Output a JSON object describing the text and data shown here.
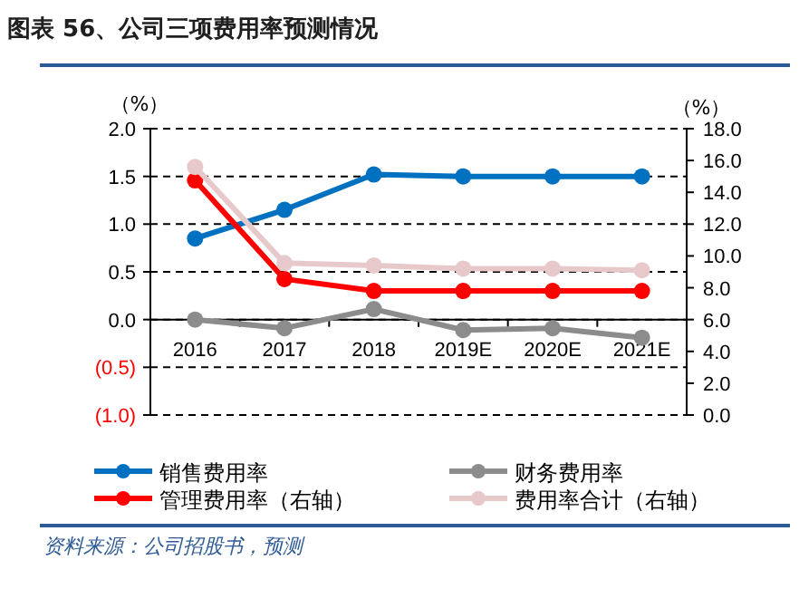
{
  "chart_data": {
    "type": "line",
    "title": "图表 56、公司三项费用率预测情况",
    "ylabel": "（%）",
    "y2label": "（%）",
    "categories": [
      "2016",
      "2017",
      "2018",
      "2019E",
      "2020E",
      "2021E"
    ],
    "series": [
      {
        "name": "销售费用率",
        "color": "#0070c0",
        "values": [
          0.85,
          1.15,
          1.52,
          1.5,
          1.5,
          1.5
        ]
      },
      {
        "name": "财务费用率",
        "color": "#8c8c8c",
        "values": [
          0.0,
          -0.09,
          0.11,
          -0.11,
          -0.09,
          -0.19
        ]
      },
      {
        "name": "管理费用率（右轴）",
        "color": "#ff0000",
        "axis": "y2",
        "values": [
          14.75,
          8.55,
          7.8,
          7.8,
          7.8,
          7.8
        ]
      },
      {
        "name": "费用率合计（右轴）",
        "color": "#e8c9cb",
        "axis": "y2",
        "values": [
          15.6,
          9.55,
          9.4,
          9.2,
          9.2,
          9.1
        ]
      }
    ],
    "ylim": [
      -1.0,
      2.0
    ],
    "yticks": [
      {
        "value": -1.0,
        "label": "(1.0)"
      },
      {
        "value": -0.5,
        "label": "(0.5)"
      },
      {
        "value": 0,
        "label": "0.0"
      },
      {
        "value": 0.5,
        "label": "0.5"
      },
      {
        "value": 1.0,
        "label": "1.0"
      },
      {
        "value": 1.5,
        "label": "1.5"
      },
      {
        "value": 2.0,
        "label": "2.0"
      }
    ],
    "y2lim": [
      0,
      18
    ],
    "y2ticks": [
      {
        "value": 0,
        "label": "0.0"
      },
      {
        "value": 2,
        "label": "2.0"
      },
      {
        "value": 4,
        "label": "4.0"
      },
      {
        "value": 6,
        "label": "6.0"
      },
      {
        "value": 8,
        "label": "8.0"
      },
      {
        "value": 10,
        "label": "10.0"
      },
      {
        "value": 12,
        "label": "12.0"
      },
      {
        "value": 14,
        "label": "14.0"
      },
      {
        "value": 16,
        "label": "16.0"
      },
      {
        "value": 18,
        "label": "18.0"
      }
    ],
    "grid": "y",
    "legend": "bottom",
    "marker": "circle",
    "line_style": "solid",
    "annotations": [
      "资料来源：公司招股书，预测"
    ]
  }
}
